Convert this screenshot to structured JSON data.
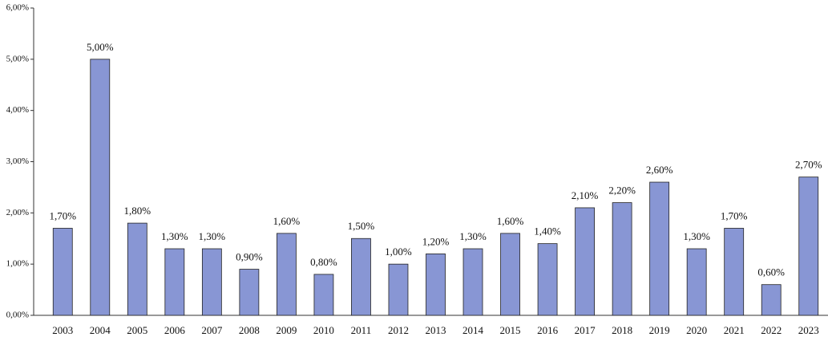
{
  "chart_data": {
    "type": "bar",
    "categories": [
      "2003",
      "2004",
      "2005",
      "2006",
      "2007",
      "2008",
      "2009",
      "2010",
      "2011",
      "2012",
      "2013",
      "2014",
      "2015",
      "2016",
      "2017",
      "2018",
      "2019",
      "2020",
      "2021",
      "2022",
      "2023"
    ],
    "values": [
      1.7,
      5.0,
      1.8,
      1.3,
      1.3,
      0.9,
      1.6,
      0.8,
      1.5,
      1.0,
      1.2,
      1.3,
      1.6,
      1.4,
      2.1,
      2.2,
      2.6,
      1.3,
      1.7,
      0.6,
      2.7
    ],
    "value_labels": [
      "1,70%",
      "5,00%",
      "1,80%",
      "1,30%",
      "1,30%",
      "0,90%",
      "1,60%",
      "0,80%",
      "1,50%",
      "1,00%",
      "1,20%",
      "1,30%",
      "1,60%",
      "1,40%",
      "2,10%",
      "2,20%",
      "2,60%",
      "1,30%",
      "1,70%",
      "0,60%",
      "2,70%"
    ],
    "color": "#8896d4",
    "ylim": [
      0,
      6
    ],
    "yticks": [
      {
        "value": 0,
        "label": "0,00%"
      },
      {
        "value": 1,
        "label": "1,00%"
      },
      {
        "value": 2,
        "label": "2,00%"
      },
      {
        "value": 3,
        "label": "3,00%"
      },
      {
        "value": 4,
        "label": "4,00%"
      },
      {
        "value": 5,
        "label": "5,00%"
      },
      {
        "value": 6,
        "label": "6,00%"
      }
    ],
    "grid": false
  }
}
